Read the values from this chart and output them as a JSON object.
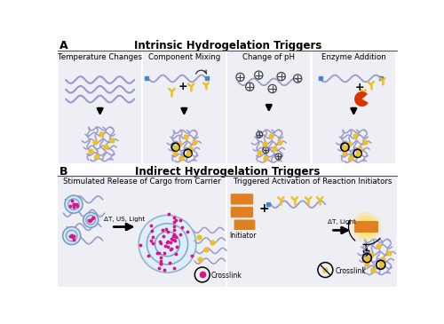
{
  "bg_color": "#ffffff",
  "panel_bg_A": "#eeeef5",
  "panel_bg_B": "#eeeef5",
  "title_A": "Intrinsic Hydrogelation Triggers",
  "title_B": "Indirect Hydrogelation Triggers",
  "label_A": "A",
  "label_B": "B",
  "sub_titles_A": [
    "Temperature Changes",
    "Component Mixing",
    "Change of pH",
    "Enzyme Addition"
  ],
  "sub_titles_B_0": "Stimulated Release of Cargo from Carrier",
  "sub_titles_B_1": "Triggered Activation of Reaction Initiators",
  "crosslink_label": "Crosslink",
  "initiator_label": "Initiator",
  "arrow_label_B1": "ΔT, US, Light",
  "arrow_label_B2": "ΔT, Light",
  "pc": "#9999cc",
  "yc": "#f0c020",
  "oc": "#dd3300",
  "orect": "#e08020",
  "pk": "#dd1188",
  "cargo_bg": "#cce8f8",
  "cargo_ring": "#7799bb",
  "divider_color": "#555555",
  "text_color": "#111111"
}
